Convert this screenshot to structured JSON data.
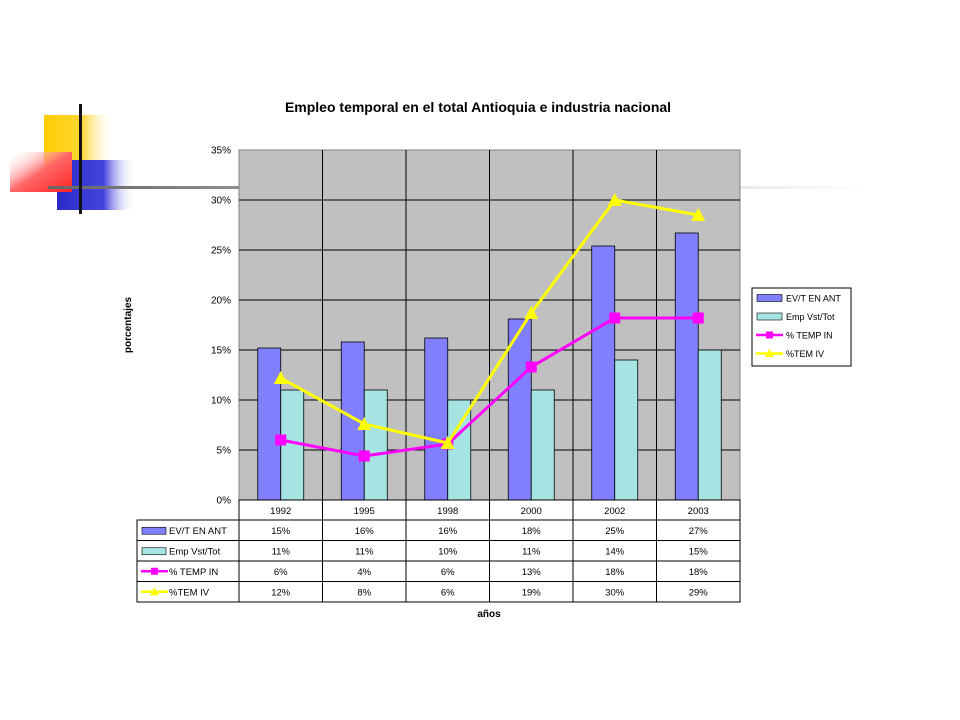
{
  "chart_data": {
    "type": "bar",
    "title": "Empleo temporal en el total Antioquia e industria nacional",
    "xlabel": "años",
    "ylabel": "porcentajes",
    "ylim": [
      0,
      35
    ],
    "yticks": [
      "0%",
      "5%",
      "10%",
      "15%",
      "20%",
      "25%",
      "30%",
      "35%"
    ],
    "categories": [
      "1992",
      "1995",
      "1998",
      "2000",
      "2002",
      "2003"
    ],
    "grid": true,
    "legend_position": "right",
    "series": [
      {
        "name": "EV/T EN ANT",
        "kind": "bar",
        "color": "#8080ff",
        "values": [
          15.2,
          15.8,
          16.2,
          18.1,
          25.4,
          26.7
        ],
        "labels": [
          "15%",
          "16%",
          "16%",
          "18%",
          "25%",
          "27%"
        ]
      },
      {
        "name": "Emp Vst/Tot",
        "kind": "bar",
        "color": "#a6e4e4",
        "values": [
          11.0,
          11.0,
          10.0,
          11.0,
          14.0,
          15.0
        ],
        "labels": [
          "11%",
          "11%",
          "10%",
          "11%",
          "14%",
          "15%"
        ]
      },
      {
        "name": "% TEMP IN",
        "kind": "line",
        "marker": "square",
        "color": "#ff00ff",
        "values": [
          6.0,
          4.4,
          5.6,
          13.3,
          18.2,
          18.2
        ],
        "labels": [
          "6%",
          "4%",
          "6%",
          "13%",
          "18%",
          "18%"
        ]
      },
      {
        "name": "%TEM IV",
        "kind": "line",
        "marker": "triangle",
        "color": "#ffff00",
        "values": [
          12.2,
          7.6,
          5.7,
          18.7,
          30.0,
          28.5
        ],
        "labels": [
          "12%",
          "8%",
          "6%",
          "19%",
          "30%",
          "29%"
        ]
      }
    ]
  }
}
